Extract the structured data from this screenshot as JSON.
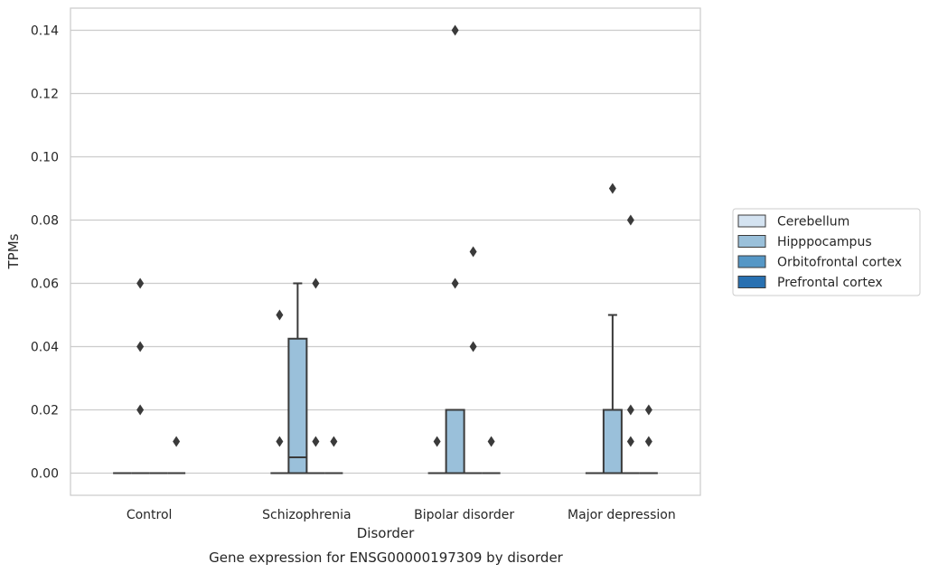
{
  "chart_data": {
    "type": "box",
    "xlabel": "Disorder",
    "ylabel": "TPMs",
    "caption": "Gene expression for ENSG00000197309 by disorder",
    "ylim": [
      -0.007,
      0.147
    ],
    "yticks": [
      "0.00",
      "0.02",
      "0.04",
      "0.06",
      "0.08",
      "0.10",
      "0.12",
      "0.14"
    ],
    "categories": [
      "Control",
      "Schizophrenia",
      "Bipolar disorder",
      "Major depression"
    ],
    "grid": true,
    "legend_position": "right",
    "series": [
      {
        "name": "Cerebellum",
        "color": "#d4e3f1",
        "boxes": [
          {
            "q1": 0,
            "median": 0,
            "q3": 0,
            "whislo": 0,
            "whishi": 0,
            "fliers": []
          },
          {
            "q1": 0,
            "median": 0,
            "q3": 0,
            "whislo": 0,
            "whishi": 0,
            "fliers": []
          },
          {
            "q1": 0,
            "median": 0,
            "q3": 0,
            "whislo": 0,
            "whishi": 0,
            "fliers": []
          },
          {
            "q1": 0,
            "median": 0,
            "q3": 0,
            "whislo": 0,
            "whishi": 0,
            "fliers": []
          }
        ]
      },
      {
        "name": "Hipppocampus",
        "color": "#9ac0da",
        "boxes": [
          {
            "q1": 0,
            "median": 0,
            "q3": 0,
            "whislo": 0,
            "whishi": 0,
            "fliers": [
              0.06,
              0.04,
              0.02
            ]
          },
          {
            "q1": 0,
            "median": 0.005,
            "q3": 0.0425,
            "whislo": 0,
            "whishi": 0.06,
            "fliers": []
          },
          {
            "q1": 0,
            "median": 0,
            "q3": 0.02,
            "whislo": 0,
            "whishi": 0.02,
            "fliers": [
              0.14,
              0.06
            ]
          },
          {
            "q1": 0,
            "median": 0,
            "q3": 0.02,
            "whislo": 0,
            "whishi": 0.05,
            "fliers": [
              0.09
            ]
          }
        ]
      },
      {
        "name": "Orbitofrontal cortex",
        "color": "#5597c6",
        "boxes": [
          {
            "q1": 0,
            "median": 0,
            "q3": 0,
            "whislo": 0,
            "whishi": 0,
            "fliers": []
          },
          {
            "q1": 0,
            "median": 0,
            "q3": 0,
            "whislo": 0,
            "whishi": 0,
            "fliers": [
              0.06,
              0.01
            ]
          },
          {
            "q1": 0,
            "median": 0,
            "q3": 0,
            "whislo": 0,
            "whishi": 0,
            "fliers": [
              0.07,
              0.04
            ]
          },
          {
            "q1": 0,
            "median": 0,
            "q3": 0,
            "whislo": 0,
            "whishi": 0,
            "fliers": [
              0.08,
              0.02,
              0.01
            ]
          }
        ]
      },
      {
        "name": "Prefrontal cortex",
        "color": "#2870b1",
        "boxes": [
          {
            "q1": 0,
            "median": 0,
            "q3": 0,
            "whislo": 0,
            "whishi": 0,
            "fliers": [
              0.01
            ]
          },
          {
            "q1": 0,
            "median": 0,
            "q3": 0,
            "whislo": 0,
            "whishi": 0,
            "fliers": [
              0.01
            ]
          },
          {
            "q1": 0,
            "median": 0,
            "q3": 0,
            "whislo": 0,
            "whishi": 0,
            "fliers": [
              0.01
            ]
          },
          {
            "q1": 0,
            "median": 0,
            "q3": 0,
            "whislo": 0,
            "whishi": 0,
            "fliers": [
              0.01
            ]
          }
        ]
      }
    ],
    "extra_fliers": [
      {
        "category": 1,
        "offset": -0.75,
        "values": [
          0.05,
          0.01
        ]
      },
      {
        "category": 2,
        "offset": -0.75,
        "values": [
          0.01
        ]
      },
      {
        "category": 3,
        "offset": 0.75,
        "values": [
          0.02
        ]
      }
    ]
  }
}
